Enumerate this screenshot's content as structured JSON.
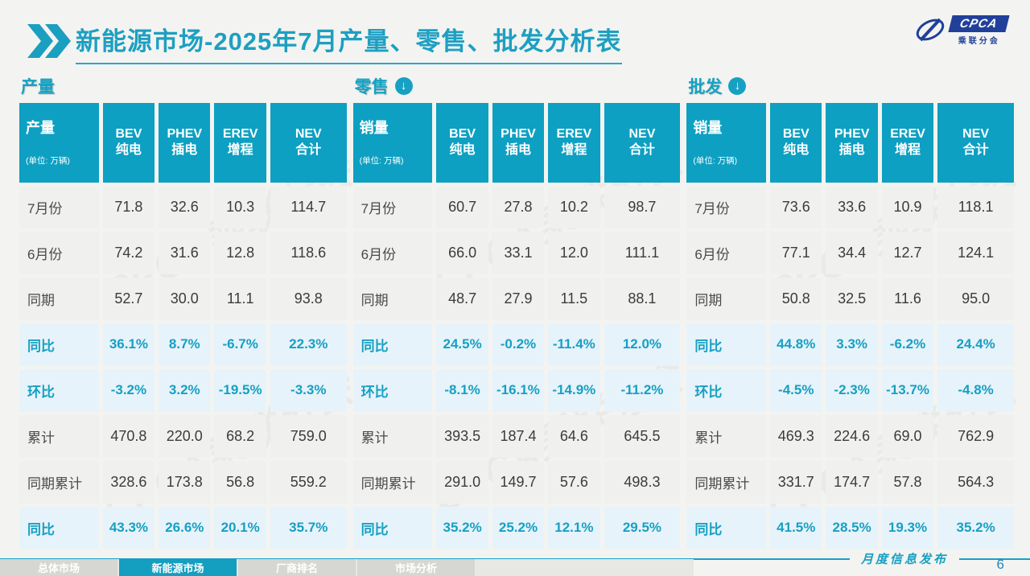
{
  "page": {
    "page_number": "6"
  },
  "header": {
    "title_bold": "新能源市场",
    "title_rest": "-2025年7月产量、零售、批发分析表"
  },
  "logo": {
    "acronym": "CPCA",
    "name": "乘联分会"
  },
  "icons": {
    "download_arrow": "↓",
    "chevron": "»"
  },
  "colors": {
    "accent_teal": "#0da0c2",
    "highlight_row_bg": "#e7f3fa",
    "row_bg": "#f0f0ee",
    "logo_navy": "#21409a"
  },
  "watermark": "CPCA乘联分会",
  "tables": [
    {
      "section_title": "产量",
      "arrow_icon": false,
      "header": {
        "label": "产量",
        "unit": "(单位: 万辆)",
        "columns": [
          "BEV\n纯电",
          "PHEV\n插电",
          "EREV\n增程",
          "NEV\n合计"
        ]
      },
      "rows": [
        {
          "label": "7月份",
          "values": [
            "71.8",
            "32.6",
            "10.3",
            "114.7"
          ],
          "highlight": false
        },
        {
          "label": "6月份",
          "values": [
            "74.2",
            "31.6",
            "12.8",
            "118.6"
          ],
          "highlight": false
        },
        {
          "label": "同期",
          "values": [
            "52.7",
            "30.0",
            "11.1",
            "93.8"
          ],
          "highlight": false
        },
        {
          "label": "同比",
          "values": [
            "36.1%",
            "8.7%",
            "-6.7%",
            "22.3%"
          ],
          "highlight": true
        },
        {
          "label": "环比",
          "values": [
            "-3.2%",
            "3.2%",
            "-19.5%",
            "-3.3%"
          ],
          "highlight": true
        },
        {
          "label": "累计",
          "values": [
            "470.8",
            "220.0",
            "68.2",
            "759.0"
          ],
          "highlight": false
        },
        {
          "label": "同期累计",
          "values": [
            "328.6",
            "173.8",
            "56.8",
            "559.2"
          ],
          "highlight": false
        },
        {
          "label": "同比",
          "values": [
            "43.3%",
            "26.6%",
            "20.1%",
            "35.7%"
          ],
          "highlight": true
        }
      ]
    },
    {
      "section_title": "零售",
      "arrow_icon": true,
      "header": {
        "label": "销量",
        "unit": "(单位: 万辆)",
        "columns": [
          "BEV\n纯电",
          "PHEV\n插电",
          "EREV\n增程",
          "NEV\n合计"
        ]
      },
      "rows": [
        {
          "label": "7月份",
          "values": [
            "60.7",
            "27.8",
            "10.2",
            "98.7"
          ],
          "highlight": false
        },
        {
          "label": "6月份",
          "values": [
            "66.0",
            "33.1",
            "12.0",
            "111.1"
          ],
          "highlight": false
        },
        {
          "label": "同期",
          "values": [
            "48.7",
            "27.9",
            "11.5",
            "88.1"
          ],
          "highlight": false
        },
        {
          "label": "同比",
          "values": [
            "24.5%",
            "-0.2%",
            "-11.4%",
            "12.0%"
          ],
          "highlight": true
        },
        {
          "label": "环比",
          "values": [
            "-8.1%",
            "-16.1%",
            "-14.9%",
            "-11.2%"
          ],
          "highlight": true
        },
        {
          "label": "累计",
          "values": [
            "393.5",
            "187.4",
            "64.6",
            "645.5"
          ],
          "highlight": false
        },
        {
          "label": "同期累计",
          "values": [
            "291.0",
            "149.7",
            "57.6",
            "498.3"
          ],
          "highlight": false
        },
        {
          "label": "同比",
          "values": [
            "35.2%",
            "25.2%",
            "12.1%",
            "29.5%"
          ],
          "highlight": true
        }
      ]
    },
    {
      "section_title": "批发",
      "arrow_icon": true,
      "header": {
        "label": "销量",
        "unit": "(单位: 万辆)",
        "columns": [
          "BEV\n纯电",
          "PHEV\n插电",
          "EREV\n增程",
          "NEV\n合计"
        ]
      },
      "rows": [
        {
          "label": "7月份",
          "values": [
            "73.6",
            "33.6",
            "10.9",
            "118.1"
          ],
          "highlight": false
        },
        {
          "label": "6月份",
          "values": [
            "77.1",
            "34.4",
            "12.7",
            "124.1"
          ],
          "highlight": false
        },
        {
          "label": "同期",
          "values": [
            "50.8",
            "32.5",
            "11.6",
            "95.0"
          ],
          "highlight": false
        },
        {
          "label": "同比",
          "values": [
            "44.8%",
            "3.3%",
            "-6.2%",
            "24.4%"
          ],
          "highlight": true
        },
        {
          "label": "环比",
          "values": [
            "-4.5%",
            "-2.3%",
            "-13.7%",
            "-4.8%"
          ],
          "highlight": true
        },
        {
          "label": "累计",
          "values": [
            "469.3",
            "224.6",
            "69.0",
            "762.9"
          ],
          "highlight": false
        },
        {
          "label": "同期累计",
          "values": [
            "331.7",
            "174.7",
            "57.8",
            "564.3"
          ],
          "highlight": false
        },
        {
          "label": "同比",
          "values": [
            "41.5%",
            "28.5%",
            "19.3%",
            "35.2%"
          ],
          "highlight": true
        }
      ]
    }
  ],
  "footer": {
    "publish_label": "月度信息发布",
    "tabs": [
      {
        "label": "总体市场",
        "active": false
      },
      {
        "label": "新能源市场",
        "active": true
      },
      {
        "label": "厂商排名",
        "active": false
      },
      {
        "label": "市场分析",
        "active": false
      }
    ]
  }
}
